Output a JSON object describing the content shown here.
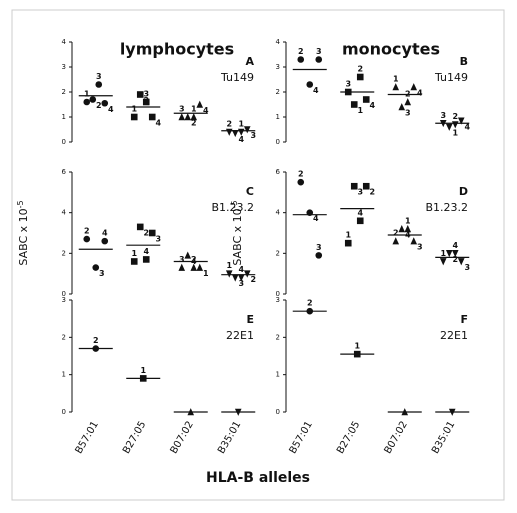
{
  "figure_title": "HLA-B alleles",
  "chart_data": [
    {
      "type": "dot",
      "title": "lymphocytes",
      "panel": "A",
      "antibody": "Tu149",
      "ylim": [
        0,
        4
      ],
      "yticks": [
        0,
        1,
        2,
        3,
        4
      ],
      "groups": [
        {
          "marker": "circle",
          "mean": 1.85,
          "points": [
            {
              "label": "1",
              "value": 1.6
            },
            {
              "label": "2",
              "value": 1.7
            },
            {
              "label": "3",
              "value": 2.3
            },
            {
              "label": "4",
              "value": 1.55
            }
          ]
        },
        {
          "marker": "square",
          "mean": 1.4,
          "points": [
            {
              "label": "1",
              "value": 1.0
            },
            {
              "label": "2",
              "value": 1.9
            },
            {
              "label": "3",
              "value": 1.6
            },
            {
              "label": "4",
              "value": 1.0
            }
          ]
        },
        {
          "marker": "triangle-up",
          "mean": 1.15,
          "points": [
            {
              "label": "3",
              "value": 1.0
            },
            {
              "label": "2",
              "value": 1.0
            },
            {
              "label": "1",
              "value": 1.0
            },
            {
              "label": "4",
              "value": 1.5
            }
          ]
        },
        {
          "marker": "triangle-down",
          "mean": 0.45,
          "points": [
            {
              "label": "2",
              "value": 0.4
            },
            {
              "label": "4",
              "value": 0.35
            },
            {
              "label": "1",
              "value": 0.4
            },
            {
              "label": "3",
              "value": 0.5
            }
          ]
        }
      ]
    },
    {
      "type": "dot",
      "title": "monocytes",
      "panel": "B",
      "antibody": "Tu149",
      "ylim": [
        0,
        4
      ],
      "yticks": [
        0,
        1,
        2,
        3,
        4
      ],
      "groups": [
        {
          "marker": "circle",
          "mean": 2.9,
          "points": [
            {
              "label": "2",
              "value": 3.3
            },
            {
              "label": "4",
              "value": 2.3
            },
            {
              "label": "3",
              "value": 3.3
            }
          ]
        },
        {
          "marker": "square",
          "mean": 2.0,
          "points": [
            {
              "label": "3",
              "value": 2.0
            },
            {
              "label": "1",
              "value": 1.5
            },
            {
              "label": "2",
              "value": 2.6
            },
            {
              "label": "4",
              "value": 1.7
            }
          ]
        },
        {
          "marker": "triangle-up",
          "mean": 1.9,
          "points": [
            {
              "label": "1",
              "value": 2.2
            },
            {
              "label": "3",
              "value": 1.4
            },
            {
              "label": "2",
              "value": 1.6
            },
            {
              "label": "4",
              "value": 2.2
            }
          ]
        },
        {
          "marker": "triangle-down",
          "mean": 0.75,
          "points": [
            {
              "label": "3",
              "value": 0.75
            },
            {
              "label": "1",
              "value": 0.6
            },
            {
              "label": "2",
              "value": 0.7
            },
            {
              "label": "4",
              "value": 0.85
            }
          ]
        }
      ]
    },
    {
      "type": "dot",
      "panel": "C",
      "antibody": "B1.23.2",
      "ylabel": "SABC x 10",
      "ylabel_sup": "-5",
      "ylim": [
        0,
        6
      ],
      "yticks": [
        0,
        2,
        4,
        6
      ],
      "groups": [
        {
          "marker": "circle",
          "mean": 2.2,
          "points": [
            {
              "label": "2",
              "value": 2.7
            },
            {
              "label": "3",
              "value": 1.3
            },
            {
              "label": "4",
              "value": 2.6
            }
          ]
        },
        {
          "marker": "square",
          "mean": 2.4,
          "points": [
            {
              "label": "1",
              "value": 1.6
            },
            {
              "label": "2",
              "value": 3.3
            },
            {
              "label": "4",
              "value": 1.7
            },
            {
              "label": "3",
              "value": 3.0
            }
          ]
        },
        {
          "marker": "triangle-up",
          "mean": 1.6,
          "points": [
            {
              "label": "3",
              "value": 1.3
            },
            {
              "label": "4",
              "value": 1.9
            },
            {
              "label": "2",
              "value": 1.3
            },
            {
              "label": "1",
              "value": 1.3
            }
          ]
        },
        {
          "marker": "triangle-down",
          "mean": 0.95,
          "points": [
            {
              "label": "1",
              "value": 1.0
            },
            {
              "label": "3",
              "value": 0.8
            },
            {
              "label": "4",
              "value": 0.8
            },
            {
              "label": "2",
              "value": 1.0
            }
          ]
        }
      ]
    },
    {
      "type": "dot",
      "panel": "D",
      "antibody": "B1.23.2",
      "ylabel": "SABC x 10",
      "ylabel_sup": "-5",
      "ylim": [
        0,
        6
      ],
      "yticks": [
        0,
        2,
        4,
        6
      ],
      "groups": [
        {
          "marker": "circle",
          "mean": 3.9,
          "points": [
            {
              "label": "2",
              "value": 5.5
            },
            {
              "label": "4",
              "value": 4.0
            },
            {
              "label": "3",
              "value": 1.9
            }
          ]
        },
        {
          "marker": "square",
          "mean": 4.2,
          "points": [
            {
              "label": "1",
              "value": 2.5
            },
            {
              "label": "3",
              "value": 5.3
            },
            {
              "label": "4",
              "value": 3.6
            },
            {
              "label": "2",
              "value": 5.3
            }
          ]
        },
        {
          "marker": "triangle-up",
          "mean": 2.9,
          "points": [
            {
              "label": "2",
              "value": 2.6
            },
            {
              "label": "4",
              "value": 3.2
            },
            {
              "label": "1",
              "value": 3.2
            },
            {
              "label": "3",
              "value": 2.6
            }
          ]
        },
        {
          "marker": "triangle-down",
          "mean": 1.8,
          "points": [
            {
              "label": "1",
              "value": 1.6
            },
            {
              "label": "2",
              "value": 2.0
            },
            {
              "label": "4",
              "value": 2.0
            },
            {
              "label": "3",
              "value": 1.6
            }
          ]
        }
      ]
    },
    {
      "type": "dot",
      "panel": "E",
      "antibody": "22E1",
      "ylim": [
        0,
        3
      ],
      "yticks": [
        0,
        1,
        2,
        3
      ],
      "categories": [
        "B57:01",
        "B27:05",
        "B07:02",
        "B35:01"
      ],
      "groups": [
        {
          "marker": "circle",
          "mean": 1.7,
          "points": [
            {
              "label": "2",
              "value": 1.7
            }
          ]
        },
        {
          "marker": "square",
          "mean": 0.9,
          "points": [
            {
              "label": "1",
              "value": 0.9
            }
          ]
        },
        {
          "marker": "triangle-up",
          "mean": 0,
          "points": [
            {
              "value": 0
            }
          ]
        },
        {
          "marker": "triangle-down",
          "mean": 0,
          "points": [
            {
              "value": 0
            }
          ]
        }
      ]
    },
    {
      "type": "dot",
      "panel": "F",
      "antibody": "22E1",
      "ylim": [
        0,
        3
      ],
      "yticks": [
        0,
        1,
        2,
        3
      ],
      "categories": [
        "B57:01",
        "B27:05",
        "B07:02",
        "B35:01"
      ],
      "groups": [
        {
          "marker": "circle",
          "mean": 2.7,
          "points": [
            {
              "label": "2",
              "value": 2.7
            }
          ]
        },
        {
          "marker": "square",
          "mean": 1.55,
          "points": [
            {
              "label": "1",
              "value": 1.55
            }
          ]
        },
        {
          "marker": "triangle-up",
          "mean": 0,
          "points": [
            {
              "value": 0
            }
          ]
        },
        {
          "marker": "triangle-down",
          "mean": 0,
          "points": [
            {
              "value": 0
            }
          ]
        }
      ]
    }
  ]
}
